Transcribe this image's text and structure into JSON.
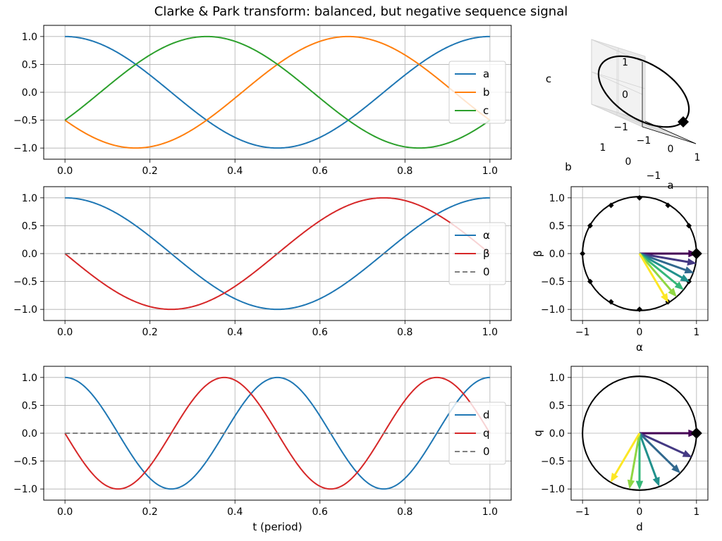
{
  "figure": {
    "title": "Clarke & Park transform: balanced, but negative sequence signal",
    "background": "#ffffff"
  },
  "colors": {
    "blue": "#1f77b4",
    "orange": "#ff7f0e",
    "green": "#2ca02c",
    "red": "#d62728",
    "gray": "#7f7f7f",
    "black": "#000000",
    "grid": "#b0b0b0"
  },
  "chart_data": [
    {
      "id": "abc-time",
      "type": "line",
      "title": "",
      "xlabel": "",
      "ylabel": "",
      "xlim": [
        -0.05,
        1.05
      ],
      "ylim": [
        -1.2,
        1.2
      ],
      "xticks": [
        0.0,
        0.2,
        0.4,
        0.6,
        0.8,
        1.0
      ],
      "xtick_labels": [
        "0.0",
        "0.2",
        "0.4",
        "0.6",
        "0.8",
        "1.0"
      ],
      "yticks": [
        1.0,
        0.5,
        0.0,
        -0.5,
        -1.0
      ],
      "ytick_labels": [
        "1.0",
        "0.5",
        "0.0",
        "−0.5",
        "−1.0"
      ],
      "grid": true,
      "legend": "center-right",
      "series": [
        {
          "name": "a",
          "fn": "cos",
          "phase_deg": 0,
          "color": "#1f77b4"
        },
        {
          "name": "b",
          "fn": "cos",
          "phase_deg": 120,
          "color": "#ff7f0e"
        },
        {
          "name": "c",
          "fn": "cos",
          "phase_deg": -120,
          "color": "#2ca02c"
        }
      ]
    },
    {
      "id": "abc-3d",
      "type": "scatter",
      "title": "",
      "xlabel": "a",
      "ylabel": "b",
      "zlabel": "c",
      "xlim": [
        -1,
        1
      ],
      "ylim": [
        -1,
        1
      ],
      "zlim": [
        -1,
        1
      ],
      "xtick_labels": [
        "−1",
        "0",
        "1"
      ],
      "ytick_labels": [
        "−1",
        "0",
        "1"
      ],
      "ztick_labels": [
        "−1",
        "0",
        "1"
      ],
      "marker_point": [
        1.0,
        -0.5,
        -0.5
      ]
    },
    {
      "id": "alphabeta-time",
      "type": "line",
      "title": "",
      "xlabel": "",
      "ylabel": "",
      "xlim": [
        -0.05,
        1.05
      ],
      "ylim": [
        -1.2,
        1.2
      ],
      "xticks": [
        0.0,
        0.2,
        0.4,
        0.6,
        0.8,
        1.0
      ],
      "xtick_labels": [
        "0.0",
        "0.2",
        "0.4",
        "0.6",
        "0.8",
        "1.0"
      ],
      "yticks": [
        1.0,
        0.5,
        0.0,
        -0.5,
        -1.0
      ],
      "ytick_labels": [
        "1.0",
        "0.5",
        "0.0",
        "−0.5",
        "−1.0"
      ],
      "grid": true,
      "legend": "center-right",
      "series": [
        {
          "name": "α",
          "fn": "cos",
          "freq": 1,
          "color": "#1f77b4"
        },
        {
          "name": "β",
          "fn": "-sin",
          "freq": 1,
          "color": "#d62728"
        },
        {
          "name": "0",
          "fn": "zero",
          "color": "#7f7f7f",
          "dashed": true
        }
      ]
    },
    {
      "id": "alphabeta-plane",
      "type": "scatter",
      "title": "",
      "xlabel": "α",
      "ylabel": "β",
      "xlim": [
        -1.2,
        1.2
      ],
      "ylim": [
        -1.2,
        1.2
      ],
      "xticks": [
        -1,
        0,
        1
      ],
      "xtick_labels": [
        "−1",
        "0",
        "1"
      ],
      "yticks": [
        1.0,
        0.5,
        0.0,
        -0.5,
        -1.0
      ],
      "ytick_labels": [
        "1.0",
        "0.5",
        "0.0",
        "−0.5",
        "−1.0"
      ],
      "grid": true,
      "circle_radius": 1,
      "markers_deg": [
        0,
        30,
        60,
        90,
        120,
        150,
        180,
        210,
        240,
        270,
        300,
        330
      ],
      "highlight_point": [
        1,
        0
      ],
      "arrows_deg": [
        0,
        -10,
        -20,
        -30,
        -40,
        -50,
        -60
      ],
      "arrow_colors": [
        "#440154",
        "#443983",
        "#31688e",
        "#21918c",
        "#35b779",
        "#90d743",
        "#fde725"
      ]
    },
    {
      "id": "dq-time",
      "type": "line",
      "title": "",
      "xlabel": "t (period)",
      "ylabel": "",
      "xlim": [
        -0.05,
        1.05
      ],
      "ylim": [
        -1.2,
        1.2
      ],
      "xticks": [
        0.0,
        0.2,
        0.4,
        0.6,
        0.8,
        1.0
      ],
      "xtick_labels": [
        "0.0",
        "0.2",
        "0.4",
        "0.6",
        "0.8",
        "1.0"
      ],
      "yticks": [
        1.0,
        0.5,
        0.0,
        -0.5,
        -1.0
      ],
      "ytick_labels": [
        "1.0",
        "0.5",
        "0.0",
        "−0.5",
        "−1.0"
      ],
      "grid": true,
      "legend": "center-right",
      "series": [
        {
          "name": "d",
          "fn": "cos",
          "freq": 2,
          "color": "#1f77b4"
        },
        {
          "name": "q",
          "fn": "-sin",
          "freq": 2,
          "color": "#d62728"
        },
        {
          "name": "0",
          "fn": "zero",
          "color": "#7f7f7f",
          "dashed": true
        }
      ]
    },
    {
      "id": "dq-plane",
      "type": "scatter",
      "title": "",
      "xlabel": "d",
      "ylabel": "q",
      "xlim": [
        -1.2,
        1.2
      ],
      "ylim": [
        -1.2,
        1.2
      ],
      "xticks": [
        -1,
        0,
        1
      ],
      "xtick_labels": [
        "−1",
        "0",
        "1"
      ],
      "yticks": [
        1.0,
        0.5,
        0.0,
        -0.5,
        -1.0
      ],
      "ytick_labels": [
        "1.0",
        "0.5",
        "0.0",
        "−0.5",
        "−1.0"
      ],
      "grid": true,
      "circle_radius": 1,
      "highlight_point": [
        1,
        0
      ],
      "arrows_deg": [
        0,
        -25,
        -45,
        -70,
        -90,
        -100,
        -120
      ],
      "arrow_colors": [
        "#440154",
        "#443983",
        "#31688e",
        "#21918c",
        "#35b779",
        "#90d743",
        "#fde725"
      ]
    }
  ]
}
